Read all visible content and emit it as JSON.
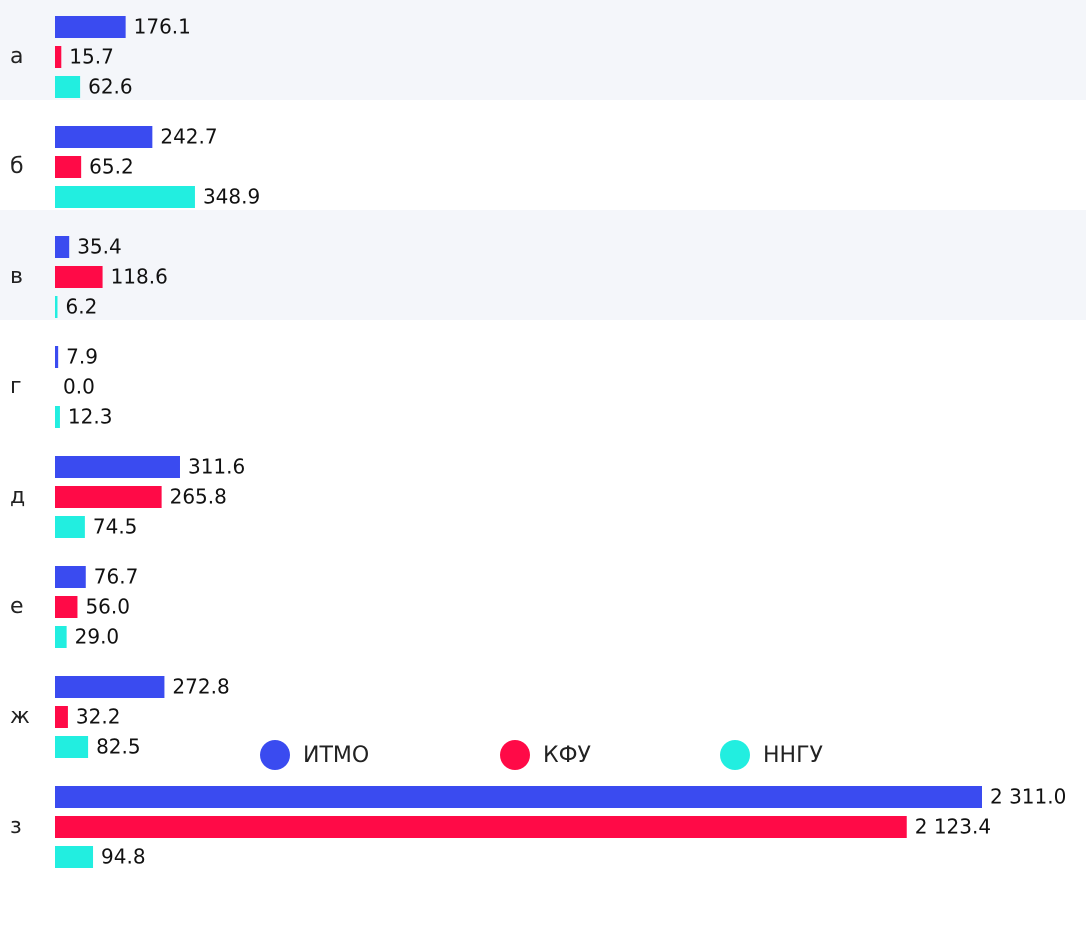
{
  "chart_data": {
    "type": "bar",
    "orientation": "horizontal",
    "categories": [
      "а",
      "б",
      "в",
      "г",
      "д",
      "е",
      "ж",
      "з"
    ],
    "series": [
      {
        "name": "ИТМО",
        "color": "#3a4bf0",
        "values": [
          176.1,
          242.7,
          35.4,
          7.9,
          311.6,
          76.7,
          272.8,
          2311.0
        ],
        "value_labels": [
          "176.1",
          "242.7",
          "35.4",
          "7.9",
          "311.6",
          "76.7",
          "272.8",
          "2 311.0"
        ]
      },
      {
        "name": "КФУ",
        "color": "#ff0a47",
        "values": [
          15.7,
          65.2,
          118.6,
          0.0,
          265.8,
          56.0,
          32.2,
          2123.4
        ],
        "value_labels": [
          "15.7",
          "65.2",
          "118.6",
          "0.0",
          "265.8",
          "56.0",
          "32.2",
          "2 123.4"
        ]
      },
      {
        "name": "ННГУ",
        "color": "#22eee0",
        "values": [
          62.6,
          348.9,
          6.2,
          12.3,
          74.5,
          29.0,
          82.5,
          94.8
        ],
        "value_labels": [
          "62.6",
          "348.9",
          "6.2",
          "12.3",
          "74.5",
          "29.0",
          "82.5",
          "94.8"
        ]
      }
    ],
    "legend": "bottom"
  }
}
